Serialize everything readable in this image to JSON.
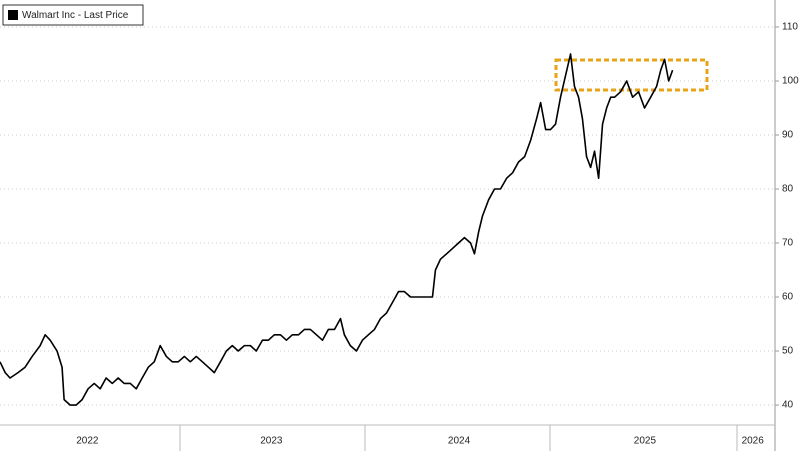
{
  "chart_data": {
    "type": "line",
    "x": [
      2022.03,
      2022.058,
      2022.084,
      2022.127,
      2022.165,
      2022.203,
      2022.246,
      2022.273,
      2022.3,
      2022.337,
      2022.364,
      2022.375,
      2022.407,
      2022.44,
      2022.472,
      2022.504,
      2022.537,
      2022.569,
      2022.601,
      2022.634,
      2022.666,
      2022.698,
      2022.731,
      2022.763,
      2022.795,
      2022.828,
      2022.86,
      2022.892,
      2022.925,
      2022.957,
      2022.989,
      2023.022,
      2023.054,
      2023.086,
      2023.119,
      2023.151,
      2023.183,
      2023.216,
      2023.248,
      2023.28,
      2023.312,
      2023.345,
      2023.377,
      2023.409,
      2023.442,
      2023.474,
      2023.506,
      2023.539,
      2023.571,
      2023.603,
      2023.636,
      2023.668,
      2023.7,
      2023.733,
      2023.765,
      2023.797,
      2023.83,
      2023.862,
      2023.883,
      2023.915,
      2023.948,
      2023.98,
      2024.012,
      2024.045,
      2024.077,
      2024.109,
      2024.142,
      2024.174,
      2024.206,
      2024.239,
      2024.271,
      2024.303,
      2024.336,
      2024.357,
      2024.373,
      2024.4,
      2024.433,
      2024.465,
      2024.497,
      2024.529,
      2024.562,
      2024.583,
      2024.605,
      2024.626,
      2024.659,
      2024.691,
      2024.723,
      2024.756,
      2024.788,
      2024.82,
      2024.853,
      2024.885,
      2024.917,
      2024.939,
      2024.966,
      2024.992,
      2025.019,
      2025.046,
      2025.073,
      2025.1,
      2025.121,
      2025.143,
      2025.164,
      2025.186,
      2025.208,
      2025.229,
      2025.251,
      2025.272,
      2025.294,
      2025.316,
      2025.337,
      2025.369,
      2025.402,
      2025.434,
      2025.466,
      2025.498,
      2025.531,
      2025.563,
      2025.585,
      2025.606,
      2025.628,
      2025.649
    ],
    "series": [
      {
        "name": "Walmart Inc - Last Price",
        "color": "#000000",
        "values": [
          48,
          46,
          45,
          46,
          47,
          49,
          51,
          53,
          52,
          50,
          47,
          41,
          40,
          40,
          41,
          43,
          44,
          43,
          45,
          44,
          45,
          44,
          44,
          43,
          45,
          47,
          48,
          51,
          49,
          48,
          48,
          49,
          48,
          49,
          48,
          47,
          46,
          48,
          50,
          51,
          50,
          51,
          51,
          50,
          52,
          52,
          53,
          53,
          52,
          53,
          53,
          54,
          54,
          53,
          52,
          54,
          54,
          56,
          53,
          51,
          50,
          52,
          53,
          54,
          56,
          57,
          59,
          61,
          61,
          60,
          60,
          60,
          60,
          60,
          65,
          67,
          68,
          69,
          70,
          71,
          70,
          68,
          72,
          75,
          78,
          80,
          80,
          82,
          83,
          85,
          86,
          89,
          93,
          96,
          91,
          91,
          92,
          97,
          101,
          105,
          99,
          97,
          93,
          86,
          84,
          87,
          82,
          92,
          95,
          97,
          97,
          98,
          100,
          97,
          98,
          95,
          97,
          99,
          102,
          104,
          100,
          102
        ]
      }
    ],
    "xlim": [
      2022.03,
      2026.2
    ],
    "xticks": [
      {
        "value": 2022.5,
        "label": "2022"
      },
      {
        "value": 2023.49,
        "label": "2023"
      },
      {
        "value": 2024.5,
        "label": "2024"
      },
      {
        "value": 2025.5,
        "label": "2025"
      },
      {
        "value": 2026.08,
        "label": "2026"
      }
    ],
    "ylim": [
      36.3,
      115
    ],
    "yticks": [
      40,
      50,
      60,
      70,
      80,
      90,
      100,
      110
    ],
    "grid": true,
    "legend": "upper left"
  }
}
